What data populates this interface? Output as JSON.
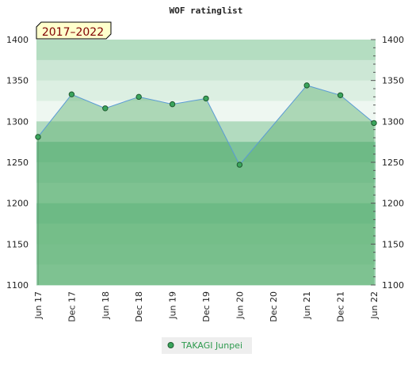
{
  "chart_data": {
    "type": "area",
    "title": "WOF ratinglist",
    "period_label": "2017–2022",
    "xlabel": "",
    "ylabel": "",
    "categories": [
      "Jun 17",
      "Dec 17",
      "Jun 18",
      "Dec 18",
      "Jun 19",
      "Dec 19",
      "Jun 20",
      "Dec 20",
      "Jun 21",
      "Dec 21",
      "Jun 22"
    ],
    "ylim": [
      1100,
      1400
    ],
    "yticks": [
      1100,
      1150,
      1200,
      1250,
      1300,
      1350,
      1400
    ],
    "series": [
      {
        "name": "TAKAGI Junpei",
        "points": [
          {
            "x": 0,
            "y": 1281
          },
          {
            "x": 1,
            "y": 1333
          },
          {
            "x": 2,
            "y": 1316
          },
          {
            "x": 3,
            "y": 1330
          },
          {
            "x": 4,
            "y": 1321
          },
          {
            "x": 5,
            "y": 1328
          },
          {
            "x": 6,
            "y": 1247
          },
          {
            "x": 8,
            "y": 1344
          },
          {
            "x": 9,
            "y": 1332
          },
          {
            "x": 10,
            "y": 1298
          }
        ]
      }
    ],
    "grid": true,
    "legend": "bottom-center",
    "colors": {
      "line": "#5b9bd5",
      "marker": "#3aa55c",
      "fill": "rgba(92,175,110,0.45)",
      "legend_text": "#2e9a4e"
    }
  }
}
